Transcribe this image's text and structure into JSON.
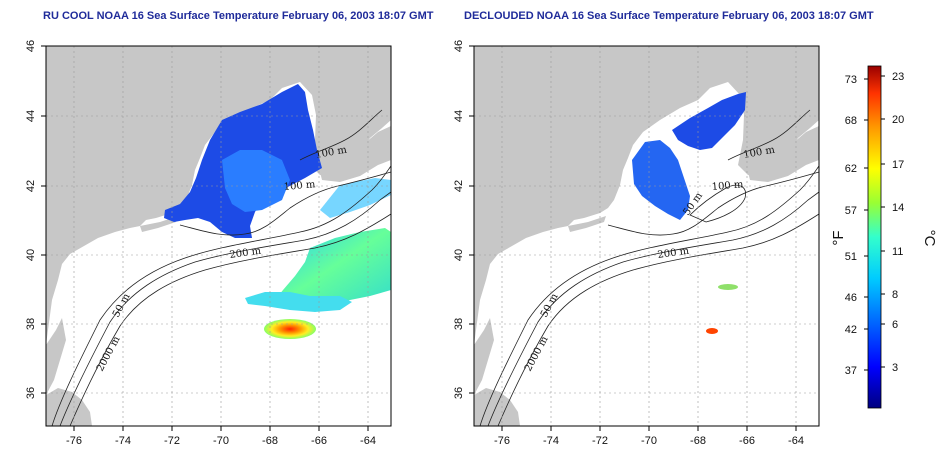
{
  "titles": {
    "left": "RU COOL NOAA 16 Sea Surface Temperature February 06, 2003 18:07 GMT",
    "right": "DECLOUDED NOAA 16 Sea Surface Temperature February 06, 2003 18:07 GMT"
  },
  "axes": {
    "x_ticks": [
      "-76",
      "-74",
      "-72",
      "-70",
      "-68",
      "-66",
      "-64"
    ],
    "y_ticks": [
      "46",
      "44",
      "42",
      "40",
      "38",
      "36"
    ]
  },
  "contour_labels": {
    "left": [
      "100 m",
      "100 m",
      "200 m",
      "50 m",
      "2000 m"
    ],
    "right": [
      "100 m",
      "100 m",
      "200 m",
      "50 m",
      "2000 m",
      "50 m"
    ]
  },
  "colorbar": {
    "f_label": "°F",
    "c_label": "°C",
    "f_ticks": [
      "73",
      "68",
      "62",
      "57",
      "51",
      "46",
      "42",
      "37"
    ],
    "c_ticks": [
      "23",
      "20",
      "17",
      "14",
      "11",
      "8",
      "6",
      "3"
    ]
  },
  "colors": {
    "land": "#c7c7c7",
    "water": "#ffffff",
    "title": "#1f2b9a",
    "colormap": [
      "#000080",
      "#0000ff",
      "#0066ff",
      "#00ccff",
      "#33ffcc",
      "#99ff33",
      "#ffff00",
      "#ff9900",
      "#ff3300",
      "#990000"
    ]
  }
}
